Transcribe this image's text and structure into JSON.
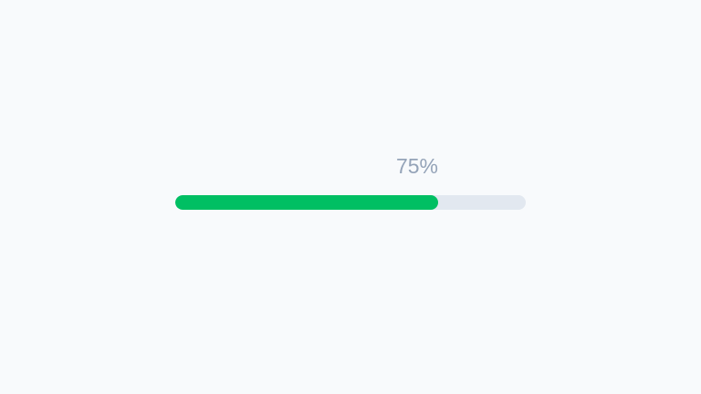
{
  "progress": {
    "label": "75%",
    "value_percent": 75,
    "fill_color": "#00bf63",
    "track_color": "#e2e8f0"
  }
}
